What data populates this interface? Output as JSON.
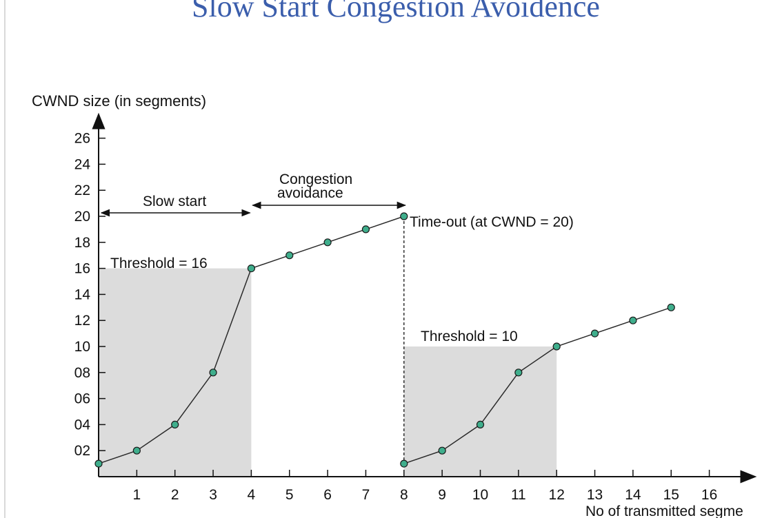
{
  "slide": {
    "title": "Slow Start Congestion Avoidence"
  },
  "chart_data": {
    "type": "line",
    "ylabel": "CWND size (in segments)",
    "xlabel": "No of transmitted segme",
    "xlim": [
      0,
      17
    ],
    "ylim": [
      0,
      27
    ],
    "x_ticks": [
      "1",
      "2",
      "3",
      "4",
      "5",
      "6",
      "7",
      "8",
      "9",
      "10",
      "11",
      "12",
      "13",
      "14",
      "15",
      "16"
    ],
    "y_ticks": [
      {
        "value": 2,
        "label": "02"
      },
      {
        "value": 4,
        "label": "04"
      },
      {
        "value": 6,
        "label": "06"
      },
      {
        "value": 8,
        "label": "08"
      },
      {
        "value": 10,
        "label": "10"
      },
      {
        "value": 12,
        "label": "12"
      },
      {
        "value": 14,
        "label": "14"
      },
      {
        "value": 16,
        "label": "16"
      },
      {
        "value": 18,
        "label": "18"
      },
      {
        "value": 20,
        "label": "20"
      },
      {
        "value": 22,
        "label": "22"
      },
      {
        "value": 24,
        "label": "24"
      },
      {
        "value": 26,
        "label": "26"
      }
    ],
    "series": [
      {
        "points": [
          [
            0,
            1
          ],
          [
            1,
            2
          ],
          [
            2,
            4
          ],
          [
            3,
            8
          ],
          [
            4,
            16
          ],
          [
            5,
            17
          ],
          [
            6,
            18
          ],
          [
            7,
            19
          ],
          [
            8,
            20
          ]
        ]
      },
      {
        "points": [
          [
            8,
            1
          ],
          [
            9,
            2
          ],
          [
            10,
            4
          ],
          [
            11,
            8
          ],
          [
            12,
            10
          ],
          [
            13,
            11
          ],
          [
            14,
            12
          ],
          [
            15,
            13
          ]
        ]
      }
    ],
    "shaded_regions": [
      {
        "x": [
          0,
          4
        ],
        "y": [
          0,
          16
        ]
      },
      {
        "x": [
          8,
          12
        ],
        "y": [
          0,
          10
        ]
      }
    ],
    "annotations": {
      "threshold_1": "Threshold = 16",
      "threshold_2": "Threshold = 10",
      "slow_start": "Slow start",
      "congestion_line1": "Congestion",
      "congestion_line2": "avoidance",
      "timeout": "Time-out (at CWND = 20)"
    },
    "colors": {
      "marker_fill": "#3fae8c",
      "marker_stroke": "#1a1a1a",
      "shade": "#dcdcdc",
      "line": "#2b2b2b"
    }
  }
}
